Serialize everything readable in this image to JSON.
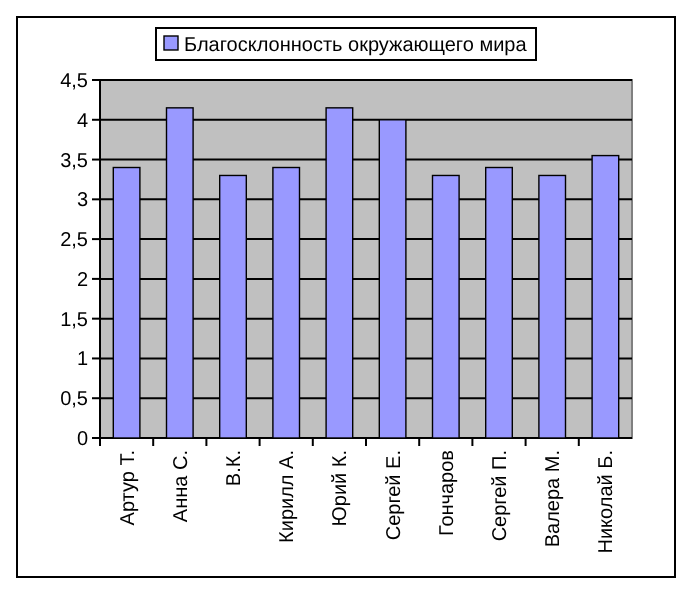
{
  "chart_data": {
    "type": "bar",
    "categories": [
      "Артур Т.",
      "Анна С.",
      "В.К.",
      "Кирилл А.",
      "Юрий К.",
      "Сергей Е.",
      "Гончаров",
      "Сергей П.",
      "Валера М.",
      "Николай Б."
    ],
    "series": [
      {
        "name": "Благосклонность окружающего мира",
        "color": "#9999ff",
        "values": [
          3.4,
          4.15,
          3.3,
          3.4,
          4.15,
          4.0,
          3.3,
          3.4,
          3.3,
          3.55
        ]
      }
    ],
    "ylim": [
      0,
      4.5
    ],
    "yticks": [
      {
        "value": 0,
        "label": "0"
      },
      {
        "value": 0.5,
        "label": "0,5"
      },
      {
        "value": 1,
        "label": "1"
      },
      {
        "value": 1.5,
        "label": "1,5"
      },
      {
        "value": 2,
        "label": "2"
      },
      {
        "value": 2.5,
        "label": "2,5"
      },
      {
        "value": 3,
        "label": "3"
      },
      {
        "value": 3.5,
        "label": "3,5"
      },
      {
        "value": 4,
        "label": "4"
      },
      {
        "value": 4.5,
        "label": "4,5"
      }
    ],
    "grid": "y",
    "legend": "top"
  }
}
